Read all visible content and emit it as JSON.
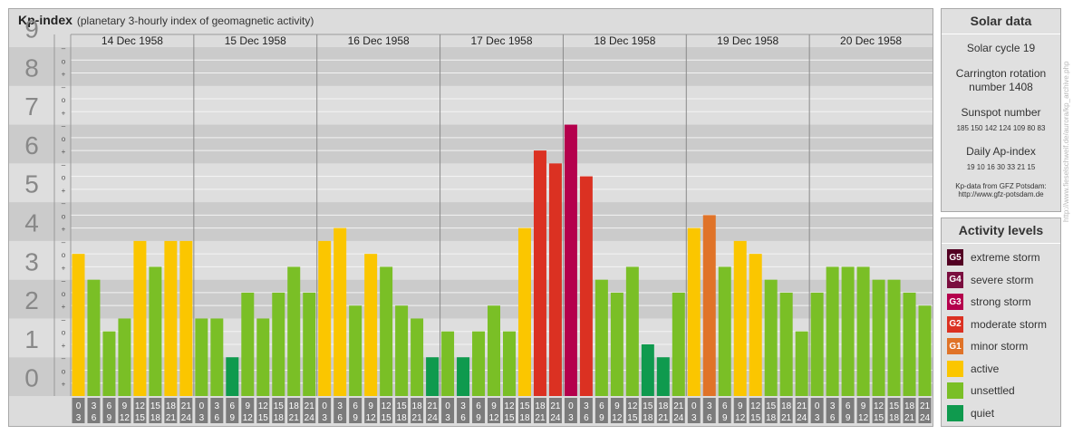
{
  "header": {
    "title": "Kp-index",
    "subtitle": "(planetary 3-hourly index of geomagnetic activity)"
  },
  "chart_data": {
    "type": "bar",
    "ylim": [
      0,
      9
    ],
    "y_tick_labels": [
      "0",
      "1",
      "2",
      "3",
      "4",
      "5",
      "6",
      "7",
      "8",
      "9"
    ],
    "minor_tick_labels": [
      "+",
      "o",
      "–"
    ],
    "days": [
      "14 Dec 1958",
      "15 Dec 1958",
      "16 Dec 1958",
      "17 Dec 1958",
      "18 Dec 1958",
      "19 Dec 1958",
      "20 Dec 1958"
    ],
    "slot_labels": [
      [
        "0",
        "3"
      ],
      [
        "3",
        "6"
      ],
      [
        "6",
        "9"
      ],
      [
        "9",
        "12"
      ],
      [
        "12",
        "15"
      ],
      [
        "15",
        "18"
      ],
      [
        "18",
        "21"
      ],
      [
        "21",
        "24"
      ]
    ],
    "values": [
      3.667,
      3.0,
      1.667,
      2.0,
      4.0,
      3.333,
      4.0,
      4.0,
      2.0,
      2.0,
      1.0,
      2.667,
      2.0,
      2.667,
      3.333,
      2.667,
      4.0,
      4.333,
      2.333,
      3.667,
      3.333,
      2.333,
      2.0,
      1.0,
      1.667,
      1.0,
      1.667,
      2.333,
      1.667,
      4.333,
      6.333,
      6.0,
      7.0,
      5.667,
      3.0,
      2.667,
      3.333,
      1.333,
      1.0,
      2.667,
      4.333,
      4.667,
      3.333,
      4.0,
      3.667,
      3.0,
      2.667,
      1.667,
      2.667,
      3.333,
      3.333,
      3.333,
      3.0,
      3.0,
      2.667,
      2.333
    ],
    "level_colors": {
      "quiet": "#0f9a4e",
      "unsettled": "#7abf26",
      "active": "#fbc600",
      "G1": "#e07328",
      "G2": "#db3122",
      "G3": "#b4004c",
      "G4": "#7a0e3f",
      "G5": "#520022"
    }
  },
  "solar_data": {
    "title": "Solar data",
    "cycle": "Solar cycle 19",
    "carrington_1": "Carrington rotation",
    "carrington_2": "number 1408",
    "sunspot_title": "Sunspot number",
    "sunspot_values": "185 150 142 124 109 80 83",
    "ap_title": "Daily Ap-index",
    "ap_values": "19 10 16 30 33 21 15",
    "source_1": "Kp-data from GFZ Potsdam:",
    "source_2": "http://www.gfz-potsdam.de"
  },
  "activity_levels": {
    "title": "Activity levels",
    "items": [
      {
        "badge": "G5",
        "label": "extreme storm",
        "color": "#520022"
      },
      {
        "badge": "G4",
        "label": "severe storm",
        "color": "#7a0e3f"
      },
      {
        "badge": "G3",
        "label": "strong storm",
        "color": "#b4004c"
      },
      {
        "badge": "G2",
        "label": "moderate storm",
        "color": "#db3122"
      },
      {
        "badge": "G1",
        "label": "minor storm",
        "color": "#e07328"
      },
      {
        "badge": "",
        "label": "active",
        "color": "#fbc600"
      },
      {
        "badge": "",
        "label": "unsettled",
        "color": "#7abf26"
      },
      {
        "badge": "",
        "label": "quiet",
        "color": "#0f9a4e"
      }
    ]
  },
  "watermark": "http://www.fieselschweif.de/aurora/kp_archive.php"
}
